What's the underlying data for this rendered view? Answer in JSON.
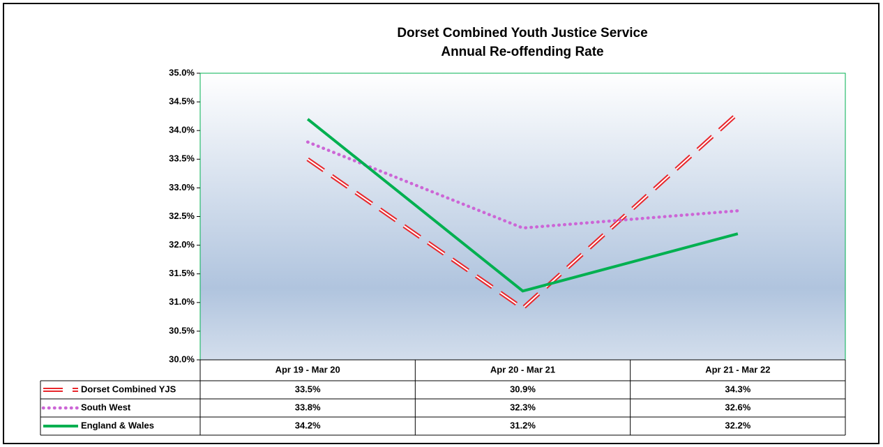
{
  "chart_data": {
    "type": "line",
    "title": "Dorset Combined Youth Justice Service",
    "subtitle": "Annual Re-offending Rate",
    "categories": [
      "Apr 19 - Mar 20",
      "Apr 20 - Mar 21",
      "Apr 21 - Mar 22"
    ],
    "series": [
      {
        "name": "Dorset Combined YJS",
        "color": "#e8262b",
        "style": "double-dash",
        "values": [
          33.5,
          30.9,
          34.3
        ],
        "value_labels": [
          "33.5%",
          "30.9%",
          "34.3%"
        ]
      },
      {
        "name": "South West",
        "color": "#cc66d6",
        "style": "dotted",
        "values": [
          33.8,
          32.3,
          32.6
        ],
        "value_labels": [
          "33.8%",
          "32.3%",
          "32.6%"
        ]
      },
      {
        "name": "England & Wales",
        "color": "#00b050",
        "style": "solid",
        "values": [
          34.2,
          31.2,
          32.2
        ],
        "value_labels": [
          "34.2%",
          "31.2%",
          "32.2%"
        ]
      }
    ],
    "ylim": [
      30,
      35
    ],
    "yticks": [
      {
        "value": 30,
        "label": "30.0%"
      },
      {
        "value": 30.5,
        "label": "30.5%"
      },
      {
        "value": 31,
        "label": "31.0%"
      },
      {
        "value": 31.5,
        "label": "31.5%"
      },
      {
        "value": 32,
        "label": "32.0%"
      },
      {
        "value": 32.5,
        "label": "32.5%"
      },
      {
        "value": 33,
        "label": "33.0%"
      },
      {
        "value": 33.5,
        "label": "33.5%"
      },
      {
        "value": 34,
        "label": "34.0%"
      },
      {
        "value": 34.5,
        "label": "34.5%"
      },
      {
        "value": 35,
        "label": "35.0%"
      }
    ],
    "data_table": true
  }
}
